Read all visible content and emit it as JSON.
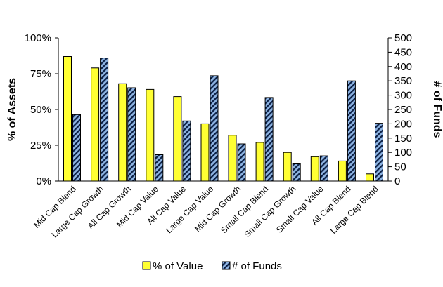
{
  "chart_data": {
    "type": "bar",
    "categories": [
      "Mid Cap Blend",
      "Large Cap Growth",
      "All Cap Growth",
      "Mid Cap Value",
      "All Cap Value",
      "Large Cap Value",
      "Mid Cap Growth",
      "Small Cap Blend",
      "Small Cap Growth",
      "Small Cap Value",
      "All Cap Blend",
      "Large Cap Blend"
    ],
    "series": [
      {
        "name": "% of Value",
        "axis": "left",
        "color": "#ffff33",
        "pattern": "solid",
        "values": [
          87,
          79,
          68,
          64,
          59,
          40,
          32,
          27,
          20,
          17,
          14,
          5
        ]
      },
      {
        "name": "# of Funds",
        "axis": "right",
        "color": "#8db3e2",
        "pattern": "diagonal-stripes",
        "values": [
          232,
          430,
          326,
          92,
          210,
          368,
          130,
          292,
          60,
          88,
          350,
          202
        ]
      }
    ],
    "y_left": {
      "label": "% of Assets",
      "range": [
        0,
        100
      ],
      "ticks": [
        "0%",
        "25%",
        "50%",
        "75%",
        "100%"
      ]
    },
    "y_right": {
      "label": "# of Funds",
      "range": [
        0,
        500
      ],
      "ticks": [
        "0",
        "50",
        "100",
        "150",
        "200",
        "250",
        "300",
        "350",
        "400",
        "450",
        "500"
      ]
    },
    "grid": false,
    "legend_position": "bottom"
  }
}
